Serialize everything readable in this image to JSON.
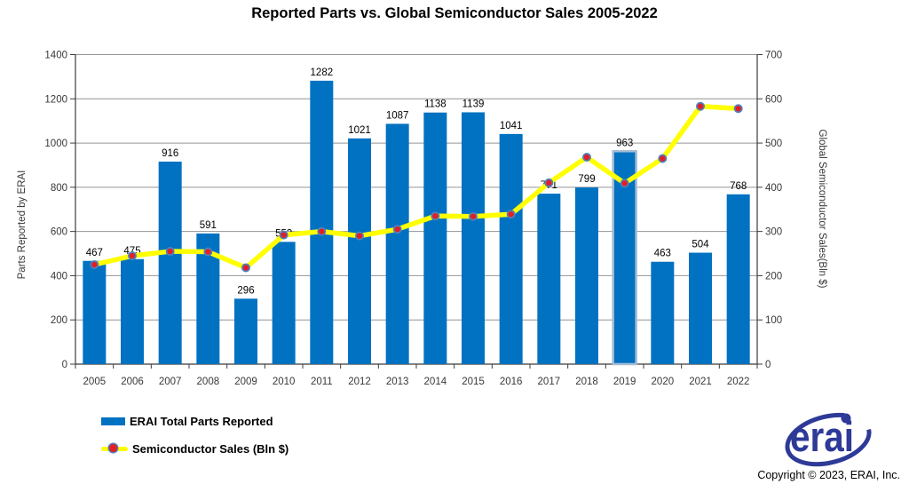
{
  "title": "Reported Parts vs. Global Semiconductor Sales 2005-2022",
  "chart_data": {
    "type": "bar",
    "subtype": "combo-bar-line",
    "categories": [
      "2005",
      "2006",
      "2007",
      "2008",
      "2009",
      "2010",
      "2011",
      "2012",
      "2013",
      "2014",
      "2015",
      "2016",
      "2017",
      "2018",
      "2019",
      "2020",
      "2021",
      "2022"
    ],
    "series": [
      {
        "name": "ERAI Total Parts Reported",
        "type": "bar",
        "axis": "left",
        "values": [
          467,
          475,
          916,
          591,
          296,
          553,
          1282,
          1021,
          1087,
          1138,
          1139,
          1041,
          771,
          799,
          963,
          463,
          504,
          768
        ],
        "data_labels_shown": true
      },
      {
        "name": "Semiconductor Sales (Bln $)",
        "type": "line",
        "axis": "right",
        "values": [
          225,
          245,
          255,
          254,
          218,
          292,
          300,
          290,
          305,
          335,
          334,
          339,
          410,
          468,
          409,
          465,
          583,
          578
        ],
        "values_estimated_from_gridlines": true,
        "data_labels_shown": false
      }
    ],
    "left_axis": {
      "label": "Parts Reported by ERAI",
      "min": 0,
      "max": 1400,
      "step": 200
    },
    "right_axis": {
      "label": "Global Semiconductor Sales(Bln $)",
      "min": 0,
      "max": 700,
      "step": 100
    },
    "highlighted_bar_index": 14,
    "highlighted_bar_year": "2019",
    "grid": true,
    "legend_position": "bottom-left"
  },
  "footer": {
    "logo_text": "erai",
    "copyright": "Copyright © 2023, ERAI, Inc."
  },
  "colors": {
    "bar": "#0072C1",
    "bar_highlight_border": "#A5BDD4",
    "line": "#FFFF00",
    "marker_fill": "#E31E26",
    "marker_ring": "#4F81BD",
    "gridline": "#949494",
    "axis": "#3C3C3C",
    "logo_blue": "#2E3A97",
    "background": "#FFFFFF"
  }
}
